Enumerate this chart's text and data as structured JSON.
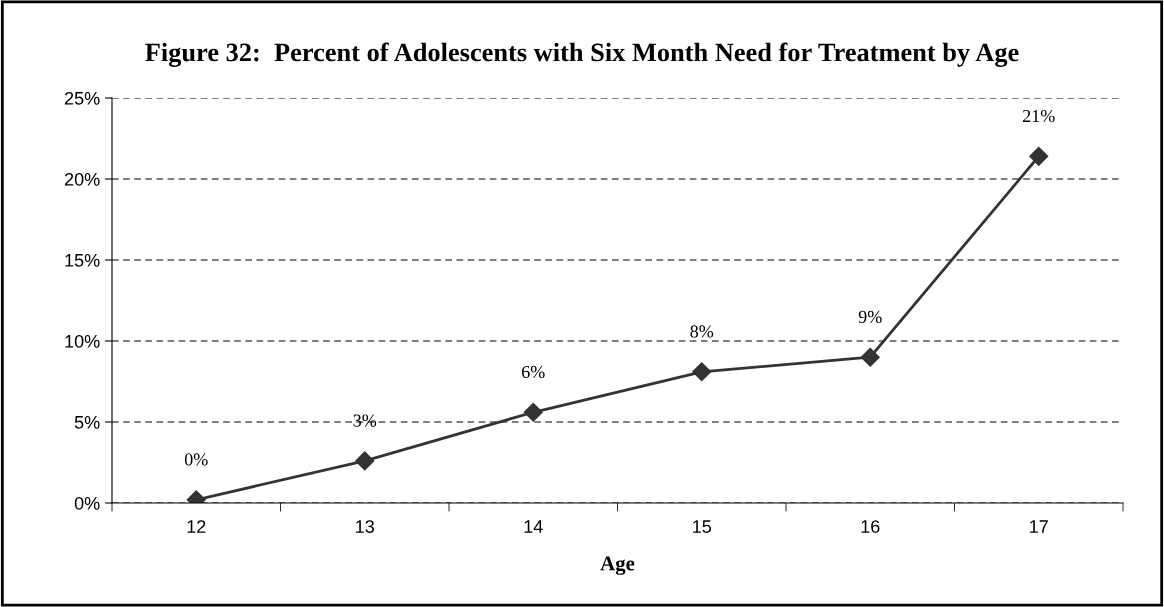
{
  "chart_data": {
    "type": "line",
    "title": "Figure 32:  Percent of Adolescents with Six Month Need for Treatment by Age",
    "xlabel": "Age",
    "categories": [
      "12",
      "13",
      "14",
      "15",
      "16",
      "17"
    ],
    "series": [
      {
        "color": "#333333",
        "values": [
          0.2,
          2.6,
          5.6,
          8.1,
          9.0,
          21.4
        ],
        "value_labels": [
          "0%",
          "3%",
          "6%",
          "8%",
          "9%",
          "21%"
        ]
      }
    ],
    "ylim": [
      0,
      25
    ],
    "yticks": [
      {
        "value": 0,
        "label": "0%"
      },
      {
        "value": 5,
        "label": "5%"
      },
      {
        "value": 10,
        "label": "10%"
      },
      {
        "value": 15,
        "label": "15%"
      },
      {
        "value": 20,
        "label": "20%"
      },
      {
        "value": 25,
        "label": "25%"
      }
    ],
    "grid": "y",
    "marker": "diamond",
    "line_style": "solid",
    "legend": false
  }
}
